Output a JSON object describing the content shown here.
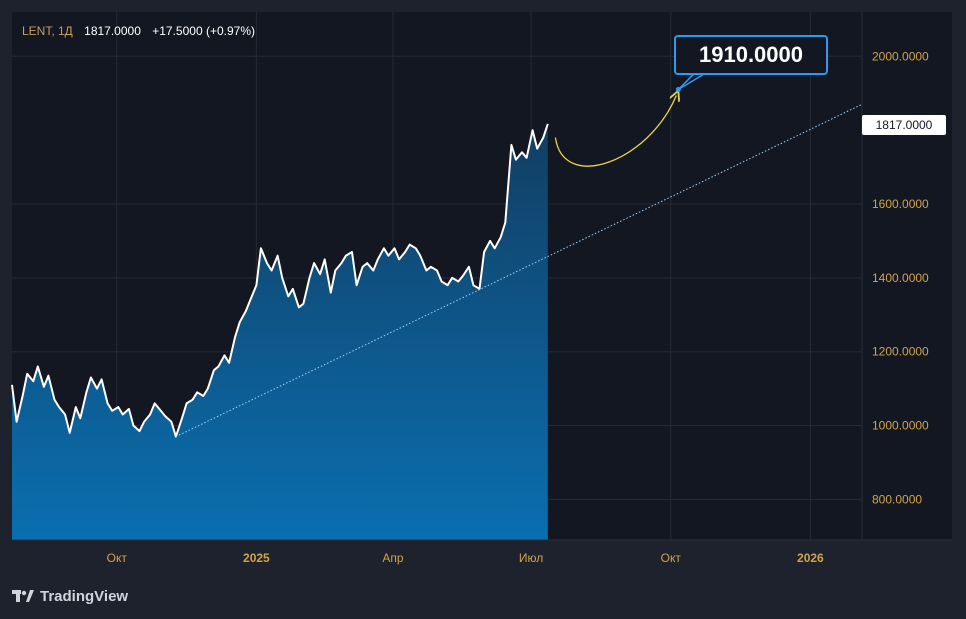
{
  "legend": {
    "symbol": "LENT, 1Д",
    "price": "1817.0000",
    "change": "+17.5000 (+0.97%)"
  },
  "last_price_label": "1817.0000",
  "callout_label": "1910.0000",
  "brand": {
    "name": "TradingView",
    "icon": "tradingview-logo-icon"
  },
  "colors": {
    "background": "#131722",
    "frame": "#1e222d",
    "line": "#ffffff",
    "area_top": "#123e63",
    "area_bottom": "#0a6fb0",
    "axis_text": "#d1a44a",
    "callout_border": "#2a9bf2",
    "forecast_arrow": "#e8d44a",
    "trend_line": "#9fd4ff"
  },
  "chart_data": {
    "type": "area",
    "x_ticks": [
      {
        "label": "Окт",
        "date": "2024-10-01",
        "bold": false
      },
      {
        "label": "2025",
        "date": "2025-01-01",
        "bold": true
      },
      {
        "label": "Апр",
        "date": "2025-04-01",
        "bold": false
      },
      {
        "label": "Июл",
        "date": "2025-07-01",
        "bold": false
      },
      {
        "label": "Окт",
        "date": "2025-10-01",
        "bold": false
      },
      {
        "label": "2026",
        "date": "2026-01-01",
        "bold": true
      }
    ],
    "y_ticks": [
      800,
      1000,
      1200,
      1400,
      1600,
      2000
    ],
    "y_tick_labels": [
      "800.0000",
      "1000.0000",
      "1200.0000",
      "1400.0000",
      "1600.0000",
      "2000.0000"
    ],
    "ylim": [
      690,
      2120
    ],
    "xlim": [
      "2024-07-24",
      "2026-02-04"
    ],
    "grid": true,
    "series": [
      {
        "values": [
          [
            "2024-07-24",
            1110
          ],
          [
            "2024-07-27",
            1010
          ],
          [
            "2024-07-31",
            1080
          ],
          [
            "2024-08-03",
            1140
          ],
          [
            "2024-08-07",
            1120
          ],
          [
            "2024-08-10",
            1160
          ],
          [
            "2024-08-14",
            1105
          ],
          [
            "2024-08-17",
            1135
          ],
          [
            "2024-08-21",
            1070
          ],
          [
            "2024-08-24",
            1050
          ],
          [
            "2024-08-28",
            1030
          ],
          [
            "2024-08-31",
            980
          ],
          [
            "2024-09-04",
            1050
          ],
          [
            "2024-09-07",
            1020
          ],
          [
            "2024-09-11",
            1090
          ],
          [
            "2024-09-14",
            1130
          ],
          [
            "2024-09-18",
            1100
          ],
          [
            "2024-09-21",
            1125
          ],
          [
            "2024-09-25",
            1060
          ],
          [
            "2024-09-28",
            1040
          ],
          [
            "2024-10-02",
            1050
          ],
          [
            "2024-10-05",
            1030
          ],
          [
            "2024-10-09",
            1045
          ],
          [
            "2024-10-12",
            1000
          ],
          [
            "2024-10-16",
            985
          ],
          [
            "2024-10-19",
            1010
          ],
          [
            "2024-10-23",
            1030
          ],
          [
            "2024-10-26",
            1060
          ],
          [
            "2024-10-30",
            1040
          ],
          [
            "2024-11-02",
            1025
          ],
          [
            "2024-11-06",
            1010
          ],
          [
            "2024-11-09",
            970
          ],
          [
            "2024-11-13",
            1020
          ],
          [
            "2024-11-16",
            1060
          ],
          [
            "2024-11-20",
            1070
          ],
          [
            "2024-11-23",
            1090
          ],
          [
            "2024-11-27",
            1080
          ],
          [
            "2024-11-30",
            1100
          ],
          [
            "2024-12-04",
            1150
          ],
          [
            "2024-12-07",
            1160
          ],
          [
            "2024-12-11",
            1190
          ],
          [
            "2024-12-14",
            1170
          ],
          [
            "2024-12-18",
            1240
          ],
          [
            "2024-12-21",
            1280
          ],
          [
            "2024-12-25",
            1310
          ],
          [
            "2024-12-28",
            1340
          ],
          [
            "2025-01-01",
            1380
          ],
          [
            "2025-01-04",
            1480
          ],
          [
            "2025-01-08",
            1440
          ],
          [
            "2025-01-11",
            1420
          ],
          [
            "2025-01-15",
            1460
          ],
          [
            "2025-01-18",
            1400
          ],
          [
            "2025-01-22",
            1350
          ],
          [
            "2025-01-25",
            1370
          ],
          [
            "2025-01-29",
            1320
          ],
          [
            "2025-02-01",
            1330
          ],
          [
            "2025-02-05",
            1400
          ],
          [
            "2025-02-08",
            1440
          ],
          [
            "2025-02-12",
            1410
          ],
          [
            "2025-02-15",
            1450
          ],
          [
            "2025-02-19",
            1360
          ],
          [
            "2025-02-22",
            1420
          ],
          [
            "2025-02-26",
            1440
          ],
          [
            "2025-03-01",
            1460
          ],
          [
            "2025-03-05",
            1470
          ],
          [
            "2025-03-08",
            1380
          ],
          [
            "2025-03-12",
            1430
          ],
          [
            "2025-03-15",
            1440
          ],
          [
            "2025-03-19",
            1420
          ],
          [
            "2025-03-22",
            1450
          ],
          [
            "2025-03-26",
            1480
          ],
          [
            "2025-03-29",
            1460
          ],
          [
            "2025-04-02",
            1480
          ],
          [
            "2025-04-05",
            1450
          ],
          [
            "2025-04-09",
            1470
          ],
          [
            "2025-04-12",
            1490
          ],
          [
            "2025-04-16",
            1480
          ],
          [
            "2025-04-19",
            1460
          ],
          [
            "2025-04-23",
            1420
          ],
          [
            "2025-04-26",
            1430
          ],
          [
            "2025-04-30",
            1420
          ],
          [
            "2025-05-03",
            1390
          ],
          [
            "2025-05-07",
            1380
          ],
          [
            "2025-05-10",
            1400
          ],
          [
            "2025-05-14",
            1390
          ],
          [
            "2025-05-17",
            1405
          ],
          [
            "2025-05-21",
            1430
          ],
          [
            "2025-05-24",
            1380
          ],
          [
            "2025-05-28",
            1370
          ],
          [
            "2025-05-31",
            1470
          ],
          [
            "2025-06-04",
            1500
          ],
          [
            "2025-06-07",
            1480
          ],
          [
            "2025-06-11",
            1510
          ],
          [
            "2025-06-14",
            1550
          ],
          [
            "2025-06-18",
            1760
          ],
          [
            "2025-06-21",
            1720
          ],
          [
            "2025-06-25",
            1740
          ],
          [
            "2025-06-28",
            1725
          ],
          [
            "2025-07-02",
            1800
          ],
          [
            "2025-07-05",
            1750
          ],
          [
            "2025-07-09",
            1780
          ],
          [
            "2025-07-12",
            1817
          ]
        ]
      }
    ],
    "trend_line": {
      "from": [
        "2024-11-09",
        970
      ],
      "to": [
        "2026-02-04",
        1870
      ]
    },
    "forecast_arrow": {
      "from": [
        "2025-07-17",
        1780
      ],
      "to": [
        "2025-10-06",
        1910
      ]
    },
    "target_value": 1910
  }
}
